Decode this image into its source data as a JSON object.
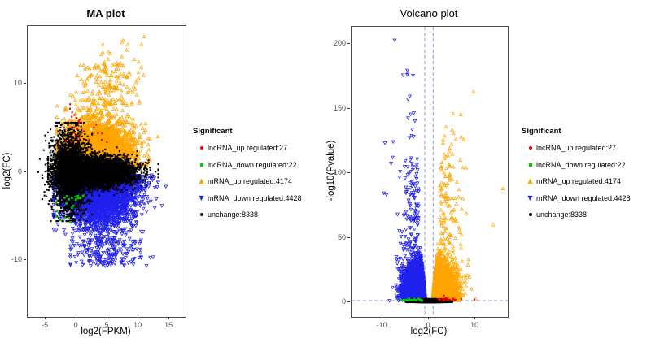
{
  "figure": {
    "background": "#ffffff",
    "border_color": "#4a4a4a",
    "tick_text_color": "#4d4d4d"
  },
  "legend": {
    "title": "Significant",
    "items": [
      {
        "label": "lncRNA_up regulated:27",
        "marker": "circle",
        "color": "#ee0000"
      },
      {
        "label": "lncRNA_down regulated:22",
        "marker": "square",
        "color": "#00cc00"
      },
      {
        "label": "mRNA_up regulated:4174",
        "marker": "triangle-up",
        "color": "#ffa500"
      },
      {
        "label": "mRNA_down regulated:4428",
        "marker": "triangle-down",
        "color": "#2020ee"
      },
      {
        "label": "unchange:8338",
        "marker": "circle",
        "color": "#000000"
      }
    ]
  },
  "chart_data": [
    {
      "type": "scatter",
      "id": "ma",
      "title": "MA plot",
      "xlabel": "log2(FPKM)",
      "ylabel": "log2(FC)",
      "xlim": [
        -7.9,
        17.6
      ],
      "ylim": [
        -16.5,
        16.6
      ],
      "xticks": [
        -5,
        0,
        5,
        10,
        15
      ],
      "yticks": [
        10,
        0,
        -10
      ],
      "series": [
        {
          "name": "mRNA_up regulated",
          "count": 4174,
          "marker": "triangle-up",
          "color": "#ffa500",
          "clusters": [
            {
              "n": 3990,
              "x": {
                "dist": "normal",
                "mean": 3.3,
                "sd": 2.9,
                "min": -3.2,
                "max": 14.8
              },
              "y": {
                "dist": "halfnormal",
                "sign": 1,
                "offset": 0.35,
                "sd": 2.5,
                "magmin": 0.3,
                "magmax": 9.0
              }
            },
            {
              "n": 170,
              "x": {
                "dist": "normal",
                "mean": 5.0,
                "sd": 2.6,
                "min": -1.0,
                "max": 13.0
              },
              "y": {
                "dist": "uniform",
                "min": 7.5,
                "max": 12.5
              }
            },
            {
              "n": 13,
              "x": {
                "dist": "normal",
                "mean": 6.5,
                "sd": 2.2,
                "min": 2.0,
                "max": 12.0
              },
              "y": {
                "dist": "uniform",
                "min": 12.5,
                "max": 15.0
              }
            }
          ],
          "outliers": [
            [
              10.9,
              15.4
            ]
          ]
        },
        {
          "name": "mRNA_down regulated",
          "count": 4428,
          "marker": "triangle-down",
          "color": "#2020ee",
          "clusters": [
            {
              "n": 4240,
              "x": {
                "dist": "normal",
                "mean": 3.8,
                "sd": 3.0,
                "min": -3.7,
                "max": 16.9
              },
              "y": {
                "dist": "halfnormal",
                "sign": -1,
                "offset": 0.35,
                "sd": 2.6,
                "magmin": 0.3,
                "magmax": 8.8
              }
            },
            {
              "n": 188,
              "x": {
                "dist": "normal",
                "mean": 5.0,
                "sd": 2.8,
                "min": -1.0,
                "max": 14.0
              },
              "y": {
                "dist": "uniform",
                "min": -10.7,
                "max": -7.5
              }
            }
          ],
          "outliers": []
        },
        {
          "name": "unchange",
          "count": 8338,
          "marker": "circle",
          "color": "#000000",
          "clusters": [
            {
              "n": 5800,
              "x": {
                "dist": "normal",
                "mean": 3.2,
                "sd": 3.0,
                "min": -4.6,
                "max": 13.2
              },
              "y": {
                "dist": "normal",
                "mean": 0,
                "sd": 0.8,
                "min": -2.8,
                "max": 2.8
              }
            },
            {
              "n": 2538,
              "x": {
                "dist": "normal",
                "mean": -1.2,
                "sd": 1.5,
                "min": -6.2,
                "max": 2.5
              },
              "y": {
                "dist": "normal",
                "mean": 0,
                "sd": 2.3,
                "min": -5.6,
                "max": 5.6
              }
            }
          ],
          "outliers": []
        },
        {
          "name": "lncRNA_down regulated",
          "count": 22,
          "marker": "square",
          "color": "#00cc00",
          "clusters": [
            {
              "n": 22,
              "x": {
                "dist": "normal",
                "mean": -1.1,
                "sd": 1.2,
                "min": -3.7,
                "max": 1.9
              },
              "y": {
                "dist": "halfnormal",
                "sign": -1,
                "offset": 2.2,
                "sd": 1.9,
                "magmin": 1.8,
                "magmax": 7.7
              }
            }
          ],
          "outliers": []
        },
        {
          "name": "lncRNA_up regulated",
          "count": 27,
          "marker": "circle",
          "color": "#ee0000",
          "clusters": [
            {
              "n": 20,
              "x": {
                "dist": "normal",
                "mean": -0.8,
                "sd": 0.9,
                "min": -2.6,
                "max": 1.2
              },
              "y": {
                "dist": "normal",
                "mean": 5.4,
                "sd": 1.3,
                "min": 3.4,
                "max": 8.3
              }
            },
            {
              "n": 7,
              "x": {
                "dist": "normal",
                "mean": 2.9,
                "sd": 1.0,
                "min": 1.3,
                "max": 4.9
              },
              "y": {
                "dist": "normal",
                "mean": 4.2,
                "sd": 0.8,
                "min": 3.0,
                "max": 6.0
              }
            }
          ],
          "outliers": []
        }
      ]
    },
    {
      "type": "scatter",
      "id": "volcano",
      "title": "Volcano plot",
      "xlabel": "log2(FC)",
      "ylabel": "-log10(Pvalue)",
      "xlim": [
        -16.7,
        17.0
      ],
      "ylim": [
        -11.3,
        213.3
      ],
      "xticks": [
        -10,
        0,
        10
      ],
      "yticks": [
        0,
        50,
        100,
        150,
        200
      ],
      "reference_lines": {
        "vlines": [
          -0.9,
          0.9
        ],
        "hline": 1.3,
        "color": "#9393e6",
        "style": "dashed"
      },
      "series": [
        {
          "name": "mRNA_down regulated",
          "count": 4428,
          "marker": "triangle-down",
          "color": "#2020ee",
          "clusters": [
            {
              "n": 4292,
              "xlink": 0.022,
              "x": {
                "dist": "halfnormal",
                "sign": -1,
                "offset": 0.75,
                "sd": 2.0,
                "magmin": 0.72,
                "magmax": 13.2
              },
              "y": {
                "dist": "halfnormal",
                "sign": 1,
                "offset": 1.2,
                "sd": 13,
                "magmin": 0.8,
                "magmax": 48
              }
            },
            {
              "n": 118,
              "x": {
                "dist": "halfnormal",
                "sign": -1,
                "offset": 2.2,
                "sd": 2.2,
                "magmin": 1.8,
                "magmax": 10
              },
              "y": {
                "dist": "uniform",
                "min": 40,
                "max": 115
              }
            },
            {
              "n": 16,
              "x": {
                "dist": "halfnormal",
                "sign": -1,
                "offset": 3.0,
                "sd": 2.0,
                "magmin": 2.5,
                "magmax": 9.5
              },
              "y": {
                "dist": "uniform",
                "min": 115,
                "max": 185
              }
            }
          ],
          "outliers": [
            [
              -7.4,
              203
            ],
            [
              -5.6,
              176
            ]
          ]
        },
        {
          "name": "mRNA_up regulated",
          "count": 4174,
          "marker": "triangle-up",
          "color": "#ffa500",
          "clusters": [
            {
              "n": 4040,
              "xlink": 0.022,
              "x": {
                "dist": "halfnormal",
                "sign": 1,
                "offset": 0.75,
                "sd": 2.1,
                "magmin": 0.72,
                "magmax": 14
              },
              "y": {
                "dist": "halfnormal",
                "sign": 1,
                "offset": 1.2,
                "sd": 12,
                "magmin": 0.8,
                "magmax": 45
              }
            },
            {
              "n": 112,
              "x": {
                "dist": "halfnormal",
                "sign": 1,
                "offset": 2.2,
                "sd": 2.3,
                "magmin": 1.8,
                "magmax": 11
              },
              "y": {
                "dist": "uniform",
                "min": 38,
                "max": 110
              }
            },
            {
              "n": 18,
              "x": {
                "dist": "halfnormal",
                "sign": 1,
                "offset": 3.0,
                "sd": 2.2,
                "magmin": 2.5,
                "magmax": 10.5
              },
              "y": {
                "dist": "uniform",
                "min": 110,
                "max": 150
              }
            }
          ],
          "outliers": [
            [
              9.6,
              163
            ],
            [
              15.9,
              88
            ],
            [
              5.2,
              146
            ],
            [
              13.8,
              60
            ]
          ]
        },
        {
          "name": "unchange",
          "count": 8338,
          "marker": "circle",
          "color": "#000000",
          "clusters": [
            {
              "n": 8338,
              "x": {
                "dist": "normal",
                "mean": 0,
                "sd": 1.5,
                "min": -5.0,
                "max": 5.0
              },
              "y": {
                "dist": "halfnormal",
                "sign": 1,
                "offset": 0,
                "sd": 0.85,
                "magmin": 0,
                "magmax": 2.6
              }
            }
          ],
          "outliers": []
        },
        {
          "name": "lncRNA_down regulated",
          "count": 22,
          "marker": "square",
          "color": "#00cc00",
          "clusters": [
            {
              "n": 22,
              "x": {
                "dist": "halfnormal",
                "sign": -1,
                "offset": 1.5,
                "sd": 1.9,
                "magmin": 1.3,
                "magmax": 7.7
              },
              "y": {
                "dist": "halfnormal",
                "sign": 1,
                "offset": 1.3,
                "sd": 0.8,
                "magmin": 0.9,
                "magmax": 4.2
              }
            }
          ],
          "outliers": []
        },
        {
          "name": "lncRNA_up regulated",
          "count": 27,
          "marker": "circle",
          "color": "#ee0000",
          "clusters": [
            {
              "n": 25,
              "x": {
                "dist": "halfnormal",
                "sign": 1,
                "offset": 1.8,
                "sd": 2.4,
                "magmin": 1.4,
                "magmax": 9.8
              },
              "y": {
                "dist": "halfnormal",
                "sign": 1,
                "offset": 1.4,
                "sd": 1.1,
                "magmin": 0.9,
                "magmax": 5.5
              }
            }
          ],
          "outliers": [
            [
              3.2,
              5.2
            ],
            [
              9.8,
              2.1
            ]
          ]
        }
      ]
    }
  ]
}
